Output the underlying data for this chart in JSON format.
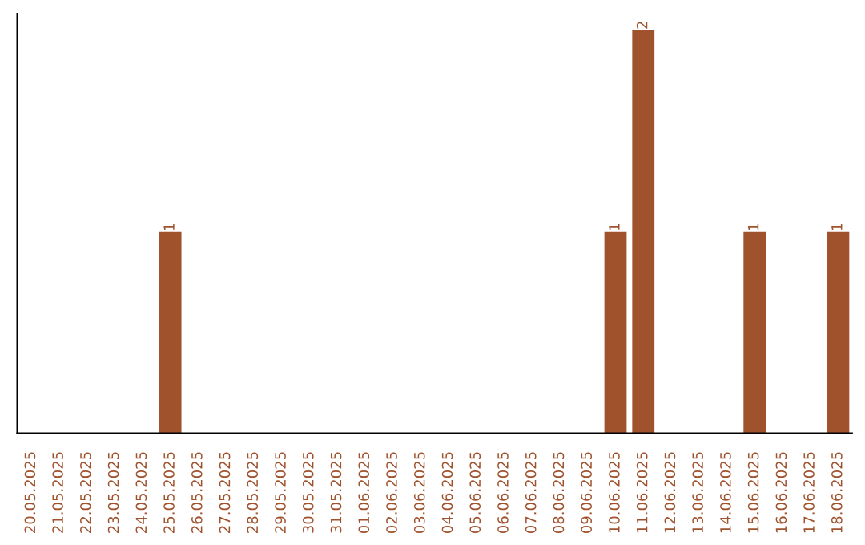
{
  "chart_data": {
    "type": "bar",
    "categories": [
      "20.05.2025",
      "21.05.2025",
      "22.05.2025",
      "23.05.2025",
      "24.05.2025",
      "25.05.2025",
      "26.05.2025",
      "27.05.2025",
      "28.05.2025",
      "29.05.2025",
      "30.05.2025",
      "31.05.2025",
      "01.06.2025",
      "02.06.2025",
      "03.06.2025",
      "04.06.2025",
      "05.06.2025",
      "06.06.2025",
      "07.06.2025",
      "08.06.2025",
      "09.06.2025",
      "10.06.2025",
      "11.06.2025",
      "12.06.2025",
      "13.06.2025",
      "14.06.2025",
      "15.06.2025",
      "16.06.2025",
      "17.06.2025",
      "18.06.2025"
    ],
    "values": [
      0,
      0,
      0,
      0,
      0,
      1,
      0,
      0,
      0,
      0,
      0,
      0,
      0,
      0,
      0,
      0,
      0,
      0,
      0,
      0,
      0,
      1,
      2,
      0,
      0,
      0,
      1,
      0,
      0,
      1
    ],
    "value_labels": [
      null,
      null,
      null,
      null,
      null,
      "1",
      null,
      null,
      null,
      null,
      null,
      null,
      null,
      null,
      null,
      null,
      null,
      null,
      null,
      null,
      null,
      "1",
      "2",
      null,
      null,
      null,
      "1",
      null,
      null,
      "1"
    ],
    "color": "#a0522d",
    "grid": false,
    "legend": false
  }
}
